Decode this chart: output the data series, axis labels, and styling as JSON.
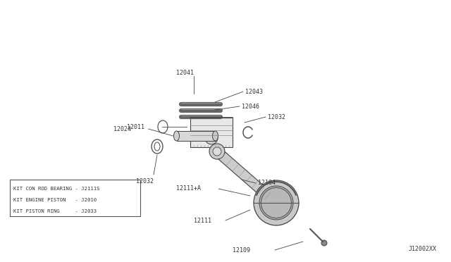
{
  "bg_color": "#ffffff",
  "line_color": "#444444",
  "text_color": "#333333",
  "footer_text": "J12002XX",
  "legend_items": [
    "KIT CON ROD BEARING - J2111S",
    "KIT ENGINE PISTON   - J2010",
    "KIT PISTON RING     - J2033"
  ],
  "fig_w": 6.4,
  "fig_h": 3.72,
  "dpi": 100
}
